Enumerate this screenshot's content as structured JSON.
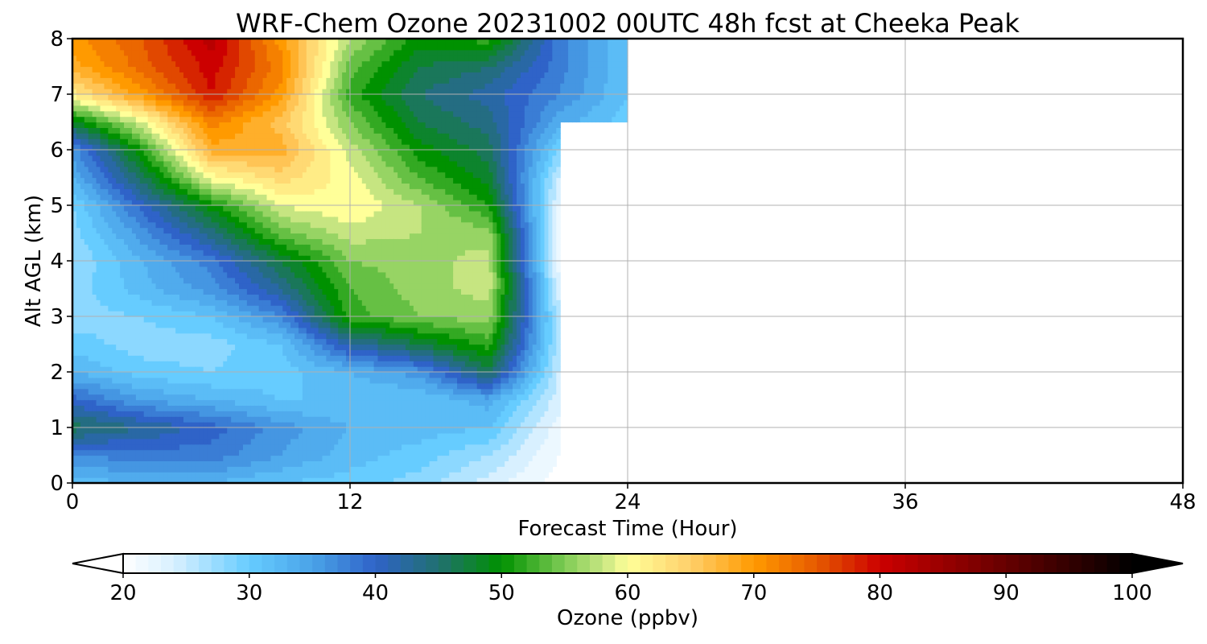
{
  "chart_data": {
    "type": "heatmap",
    "title": "WRF-Chem Ozone  20231002 00UTC 48h fcst at Cheeka Peak",
    "xlabel": "Forecast Time (Hour)",
    "ylabel": "Alt AGL (km)",
    "xlim": [
      0,
      48
    ],
    "ylim": [
      0,
      8
    ],
    "xticks": [
      0,
      12,
      24,
      36,
      48
    ],
    "yticks": [
      0,
      1,
      2,
      3,
      4,
      5,
      6,
      7,
      8
    ],
    "grid": true,
    "x": [
      0,
      3,
      6,
      9,
      12,
      15,
      18,
      21,
      24
    ],
    "y": [
      0,
      0.5,
      1,
      1.5,
      2,
      2.5,
      3,
      3.5,
      4,
      4.5,
      5,
      5.5,
      6,
      6.5,
      7,
      7.5,
      8
    ],
    "z": [
      [
        32,
        33,
        33,
        31,
        30,
        28,
        24,
        20,
        null
      ],
      [
        37,
        38,
        38,
        35,
        32,
        30,
        27,
        21,
        null
      ],
      [
        46,
        43,
        40,
        36,
        33,
        32,
        31,
        22,
        null
      ],
      [
        40,
        35,
        33,
        31,
        31,
        31,
        34,
        24,
        null
      ],
      [
        33,
        30,
        29,
        30,
        33,
        36,
        46,
        25,
        null
      ],
      [
        30,
        28,
        28,
        31,
        42,
        47,
        52,
        26,
        null
      ],
      [
        28,
        29,
        31,
        37,
        52,
        55,
        56,
        26,
        null
      ],
      [
        28,
        32,
        36,
        43,
        53,
        56,
        58,
        24,
        null
      ],
      [
        27,
        33,
        38,
        47,
        55,
        56,
        58,
        22,
        null
      ],
      [
        28,
        36,
        44,
        54,
        58,
        57,
        56,
        22,
        null
      ],
      [
        29,
        40,
        50,
        59,
        61,
        57,
        51,
        23,
        null
      ],
      [
        33,
        46,
        60,
        64,
        60,
        53,
        48,
        25,
        null
      ],
      [
        36,
        51,
        68,
        68,
        58,
        50,
        46,
        29,
        null
      ],
      [
        48,
        59,
        72,
        66,
        55,
        47,
        44,
        34,
        30
      ],
      [
        62,
        70,
        79,
        70,
        52,
        45,
        42,
        37,
        31
      ],
      [
        68,
        74,
        80,
        72,
        54,
        47,
        45,
        38,
        31
      ],
      [
        70,
        75,
        82,
        70,
        57,
        50,
        52,
        38,
        31
      ]
    ],
    "colorbar": {
      "label": "Ozone  (ppbv)",
      "range": [
        20,
        100
      ],
      "ticks": [
        20,
        30,
        40,
        50,
        60,
        70,
        80,
        90,
        100
      ],
      "extend": "both",
      "stops": [
        [
          20,
          "#ffffff"
        ],
        [
          24,
          "#d8f0ff"
        ],
        [
          30,
          "#66ccff"
        ],
        [
          35,
          "#4aa3e8"
        ],
        [
          40,
          "#2f63c8"
        ],
        [
          45,
          "#217070"
        ],
        [
          50,
          "#009100"
        ],
        [
          55,
          "#7fcc55"
        ],
        [
          58,
          "#c6e581"
        ],
        [
          60,
          "#ffff99"
        ],
        [
          65,
          "#ffcf6a"
        ],
        [
          70,
          "#ff9a00"
        ],
        [
          75,
          "#e65a00"
        ],
        [
          80,
          "#cc0000"
        ],
        [
          90,
          "#660000"
        ],
        [
          100,
          "#000000"
        ]
      ],
      "under_color": "#ffffff",
      "over_color": "#000000"
    }
  }
}
